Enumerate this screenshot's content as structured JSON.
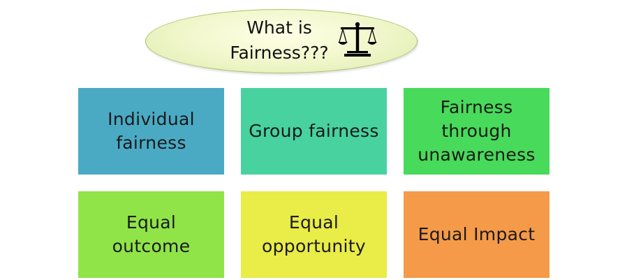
{
  "title": {
    "line1": "What is",
    "line2": "Fairness???",
    "icon": "balance-scale-icon"
  },
  "boxes": [
    {
      "lines": [
        "Individual",
        "fairness"
      ],
      "color": "#4aaac4"
    },
    {
      "lines": [
        "Group fairness"
      ],
      "color": "#48d2a0"
    },
    {
      "lines": [
        "Fairness",
        "through",
        "unawareness"
      ],
      "color": "#48da5a"
    },
    {
      "lines": [
        "Equal",
        "outcome"
      ],
      "color": "#90e448"
    },
    {
      "lines": [
        "Equal",
        "opportunity"
      ],
      "color": "#eaec48"
    },
    {
      "lines": [
        "Equal Impact"
      ],
      "color": "#f59a48"
    }
  ]
}
